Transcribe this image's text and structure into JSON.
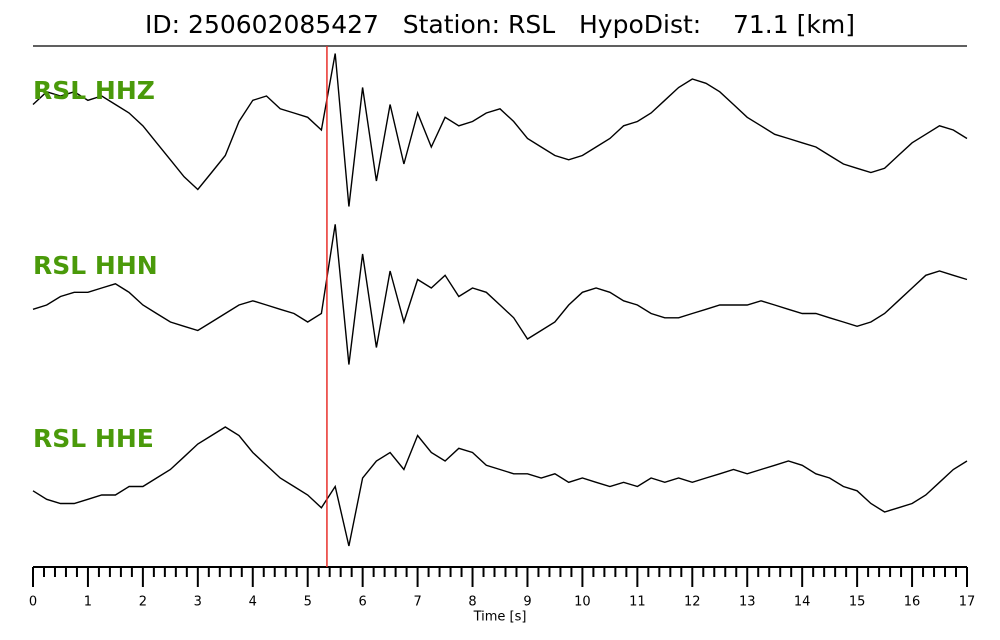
{
  "chart_data": {
    "type": "seismogram",
    "title": "ID: 250602085427   Station: RSL   HypoDist:    71.1 [km]",
    "xlabel": "Time [s]",
    "xlim": [
      0,
      17
    ],
    "xticks": [
      0,
      1,
      2,
      3,
      4,
      5,
      6,
      7,
      8,
      9,
      10,
      11,
      12,
      13,
      14,
      15,
      16,
      17
    ],
    "xticks_minor": [
      0.2,
      0.4,
      0.6,
      0.8,
      1.2,
      1.4,
      1.6,
      1.8,
      2.2,
      2.4,
      2.6,
      2.8,
      3.2,
      3.4,
      3.6,
      3.8,
      4.2,
      4.4,
      4.6,
      4.8,
      5.2,
      5.4,
      5.6,
      5.8,
      6.2,
      6.4,
      6.6,
      6.8,
      7.2,
      7.4,
      7.6,
      7.8,
      8.2,
      8.4,
      8.6,
      8.8,
      9.2,
      9.4,
      9.6,
      9.8,
      10.2,
      10.4,
      10.6,
      10.8,
      11.2,
      11.4,
      11.6,
      11.8,
      12.2,
      12.4,
      12.6,
      12.8,
      13.2,
      13.4,
      13.6,
      13.8,
      14.2,
      14.4,
      14.6,
      14.8,
      15.2,
      15.4,
      15.6,
      15.8,
      16.2,
      16.4,
      16.6,
      16.8
    ],
    "pick": 5.35,
    "pick_color": "#e8302a",
    "ylim": [
      -1,
      1
    ],
    "label_color": "#4a9a0a",
    "x": [
      0,
      0.25,
      0.5,
      0.75,
      1,
      1.25,
      1.5,
      1.75,
      2,
      2.25,
      2.5,
      2.75,
      3,
      3.25,
      3.5,
      3.75,
      4,
      4.25,
      4.5,
      4.75,
      5,
      5.25,
      5.5,
      5.75,
      6,
      6.25,
      6.5,
      6.75,
      7,
      7.25,
      7.5,
      7.75,
      8,
      8.25,
      8.5,
      8.75,
      9,
      9.25,
      9.5,
      9.75,
      10,
      10.25,
      10.5,
      10.75,
      11,
      11.25,
      11.5,
      11.75,
      12,
      12.25,
      12.5,
      12.75,
      13,
      13.25,
      13.5,
      13.75,
      14,
      14.25,
      14.5,
      14.75,
      15,
      15.25,
      15.5,
      15.75,
      16,
      16.25,
      16.5,
      16.75,
      17
    ],
    "series": [
      {
        "name": "RSL HHZ",
        "color": "#000000",
        "values": [
          0.3,
          0.45,
          0.4,
          0.45,
          0.35,
          0.4,
          0.3,
          0.2,
          0.05,
          -0.15,
          -0.35,
          -0.55,
          -0.7,
          -0.5,
          -0.3,
          0.1,
          0.35,
          0.4,
          0.25,
          0.2,
          0.15,
          0.0,
          0.9,
          -0.9,
          0.5,
          -0.6,
          0.3,
          -0.4,
          0.2,
          -0.2,
          0.15,
          0.05,
          0.1,
          0.2,
          0.25,
          0.1,
          -0.1,
          -0.2,
          -0.3,
          -0.35,
          -0.3,
          -0.2,
          -0.1,
          0.05,
          0.1,
          0.2,
          0.35,
          0.5,
          0.6,
          0.55,
          0.45,
          0.3,
          0.15,
          0.05,
          -0.05,
          -0.1,
          -0.15,
          -0.2,
          -0.3,
          -0.4,
          -0.45,
          -0.5,
          -0.45,
          -0.3,
          -0.15,
          -0.05,
          0.05,
          0.0,
          -0.1
        ]
      },
      {
        "name": "RSL HHN",
        "color": "#000000",
        "values": [
          -0.05,
          0.0,
          0.1,
          0.15,
          0.15,
          0.2,
          0.25,
          0.15,
          0.0,
          -0.1,
          -0.2,
          -0.25,
          -0.3,
          -0.2,
          -0.1,
          0.0,
          0.05,
          0.0,
          -0.05,
          -0.1,
          -0.2,
          -0.1,
          0.95,
          -0.7,
          0.6,
          -0.5,
          0.4,
          -0.2,
          0.3,
          0.2,
          0.35,
          0.1,
          0.2,
          0.15,
          0.0,
          -0.15,
          -0.4,
          -0.3,
          -0.2,
          0.0,
          0.15,
          0.2,
          0.15,
          0.05,
          0.0,
          -0.1,
          -0.15,
          -0.15,
          -0.1,
          -0.05,
          0.0,
          0.0,
          0.0,
          0.05,
          0.0,
          -0.05,
          -0.1,
          -0.1,
          -0.15,
          -0.2,
          -0.25,
          -0.2,
          -0.1,
          0.05,
          0.2,
          0.35,
          0.4,
          0.35,
          0.3
        ]
      },
      {
        "name": "RSL HHE",
        "color": "#000000",
        "values": [
          -0.15,
          -0.25,
          -0.3,
          -0.3,
          -0.25,
          -0.2,
          -0.2,
          -0.1,
          -0.1,
          0.0,
          0.1,
          0.25,
          0.4,
          0.5,
          0.6,
          0.5,
          0.3,
          0.15,
          0.0,
          -0.1,
          -0.2,
          -0.35,
          -0.1,
          -0.8,
          0.0,
          0.2,
          0.3,
          0.1,
          0.5,
          0.3,
          0.2,
          0.35,
          0.3,
          0.15,
          0.1,
          0.05,
          0.05,
          0.0,
          0.05,
          -0.05,
          0.0,
          -0.05,
          -0.1,
          -0.05,
          -0.1,
          0.0,
          -0.05,
          0.0,
          -0.05,
          0.0,
          0.05,
          0.1,
          0.05,
          0.1,
          0.15,
          0.2,
          0.15,
          0.05,
          0.0,
          -0.1,
          -0.15,
          -0.3,
          -0.4,
          -0.35,
          -0.3,
          -0.2,
          -0.05,
          0.1,
          0.2
        ]
      }
    ]
  }
}
